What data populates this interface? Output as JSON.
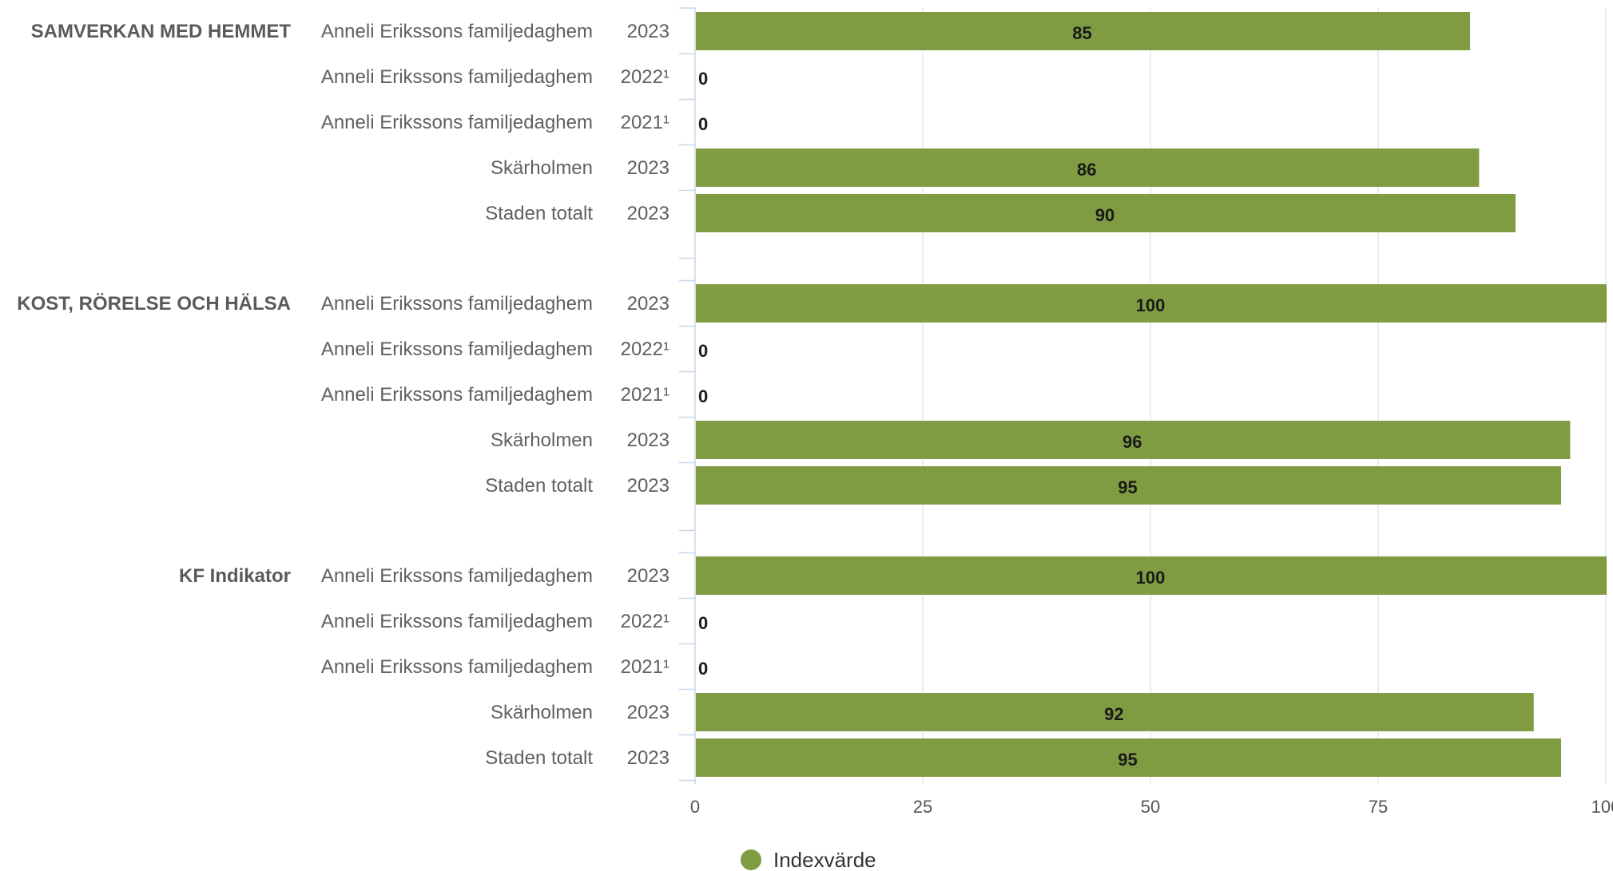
{
  "chart_data": {
    "type": "bar",
    "orientation": "horizontal",
    "xlim": [
      0,
      100
    ],
    "xticks": [
      "0",
      "25",
      "50",
      "75",
      "100"
    ],
    "grid": true,
    "legend_position": "bottom",
    "bar_color": "#7f9c43",
    "series": [
      {
        "name": "Indexvärde"
      }
    ],
    "groups": [
      {
        "label": "SAMVERKAN MED HEMMET",
        "rows": [
          {
            "entity": "Anneli Erikssons familjedaghem",
            "year": "2023",
            "value": 85,
            "value_label": "85"
          },
          {
            "entity": "Anneli Erikssons familjedaghem",
            "year": "2022¹",
            "value": 0,
            "value_label": "0"
          },
          {
            "entity": "Anneli Erikssons familjedaghem",
            "year": "2021¹",
            "value": 0,
            "value_label": "0"
          },
          {
            "entity": "Skärholmen",
            "year": "2023",
            "value": 86,
            "value_label": "86"
          },
          {
            "entity": "Staden totalt",
            "year": "2023",
            "value": 90,
            "value_label": "90"
          }
        ]
      },
      {
        "label": "KOST, RÖRELSE OCH HÄLSA",
        "rows": [
          {
            "entity": "Anneli Erikssons familjedaghem",
            "year": "2023",
            "value": 100,
            "value_label": "100"
          },
          {
            "entity": "Anneli Erikssons familjedaghem",
            "year": "2022¹",
            "value": 0,
            "value_label": "0"
          },
          {
            "entity": "Anneli Erikssons familjedaghem",
            "year": "2021¹",
            "value": 0,
            "value_label": "0"
          },
          {
            "entity": "Skärholmen",
            "year": "2023",
            "value": 96,
            "value_label": "96"
          },
          {
            "entity": "Staden totalt",
            "year": "2023",
            "value": 95,
            "value_label": "95"
          }
        ]
      },
      {
        "label": "KF Indikator",
        "rows": [
          {
            "entity": "Anneli Erikssons familjedaghem",
            "year": "2023",
            "value": 100,
            "value_label": "100"
          },
          {
            "entity": "Anneli Erikssons familjedaghem",
            "year": "2022¹",
            "value": 0,
            "value_label": "0"
          },
          {
            "entity": "Anneli Erikssons familjedaghem",
            "year": "2021¹",
            "value": 0,
            "value_label": "0"
          },
          {
            "entity": "Skärholmen",
            "year": "2023",
            "value": 92,
            "value_label": "92"
          },
          {
            "entity": "Staden totalt",
            "year": "2023",
            "value": 95,
            "value_label": "95"
          }
        ]
      }
    ]
  }
}
